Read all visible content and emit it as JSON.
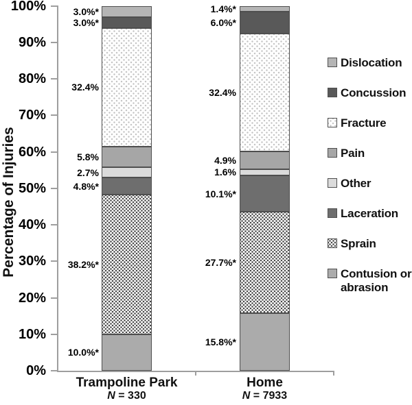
{
  "chart_data": {
    "type": "bar",
    "stacked": true,
    "orientation": "vertical",
    "ylabel": "Percentage of Injuries",
    "ylim": [
      0,
      100
    ],
    "yticks": [
      "0%",
      "10%",
      "20%",
      "30%",
      "40%",
      "50%",
      "60%",
      "70%",
      "80%",
      "90%",
      "100%"
    ],
    "grid": false,
    "categories": [
      "Trampoline Park",
      "Home"
    ],
    "category_sublabels": [
      {
        "italic": "N",
        "rest": " = 330"
      },
      {
        "italic": "N",
        "rest": " = 7933"
      }
    ],
    "series": [
      {
        "name": "Contusion or abrasion",
        "values": [
          10.0,
          15.8
        ],
        "labels": [
          "10.0%*",
          "15.8%*"
        ],
        "fill": "#ababab",
        "pattern": "solid"
      },
      {
        "name": "Sprain",
        "values": [
          38.2,
          27.7
        ],
        "labels": [
          "38.2%*",
          "27.7%*"
        ],
        "fill": "",
        "pattern": "dense-dots"
      },
      {
        "name": "Laceration",
        "values": [
          4.8,
          10.1
        ],
        "labels": [
          "4.8%*",
          "10.1%*"
        ],
        "fill": "#6e6e6e",
        "pattern": "solid"
      },
      {
        "name": "Other",
        "values": [
          2.7,
          1.6
        ],
        "labels": [
          "2.7%",
          "1.6%"
        ],
        "fill": "#dbdbdb",
        "pattern": "solid"
      },
      {
        "name": "Pain",
        "values": [
          5.8,
          4.9
        ],
        "labels": [
          "5.8%",
          "4.9%"
        ],
        "fill": "#a6a6a6",
        "pattern": "solid"
      },
      {
        "name": "Fracture",
        "values": [
          32.4,
          32.4
        ],
        "labels": [
          "32.4%",
          "32.4%"
        ],
        "fill": "",
        "pattern": "sparse-dots"
      },
      {
        "name": "Concussion",
        "values": [
          3.0,
          6.0
        ],
        "labels": [
          "3.0%*",
          "6.0%*"
        ],
        "fill": "#595959",
        "pattern": "solid"
      },
      {
        "name": "Dislocation",
        "values": [
          3.0,
          1.4
        ],
        "labels": [
          "3.0%*",
          "1.4%*"
        ],
        "fill": "#b5b5b5",
        "pattern": "solid"
      }
    ],
    "legend": {
      "position": "right",
      "items": [
        "Dislocation",
        "Concussion",
        "Fracture",
        "Pain",
        "Other",
        "Laceration",
        "Sprain",
        "Contusion or abrasion"
      ]
    },
    "colors": {
      "axis": "#9e9e9e",
      "segment_border": "#4e4e4e",
      "text": "#000000"
    }
  }
}
